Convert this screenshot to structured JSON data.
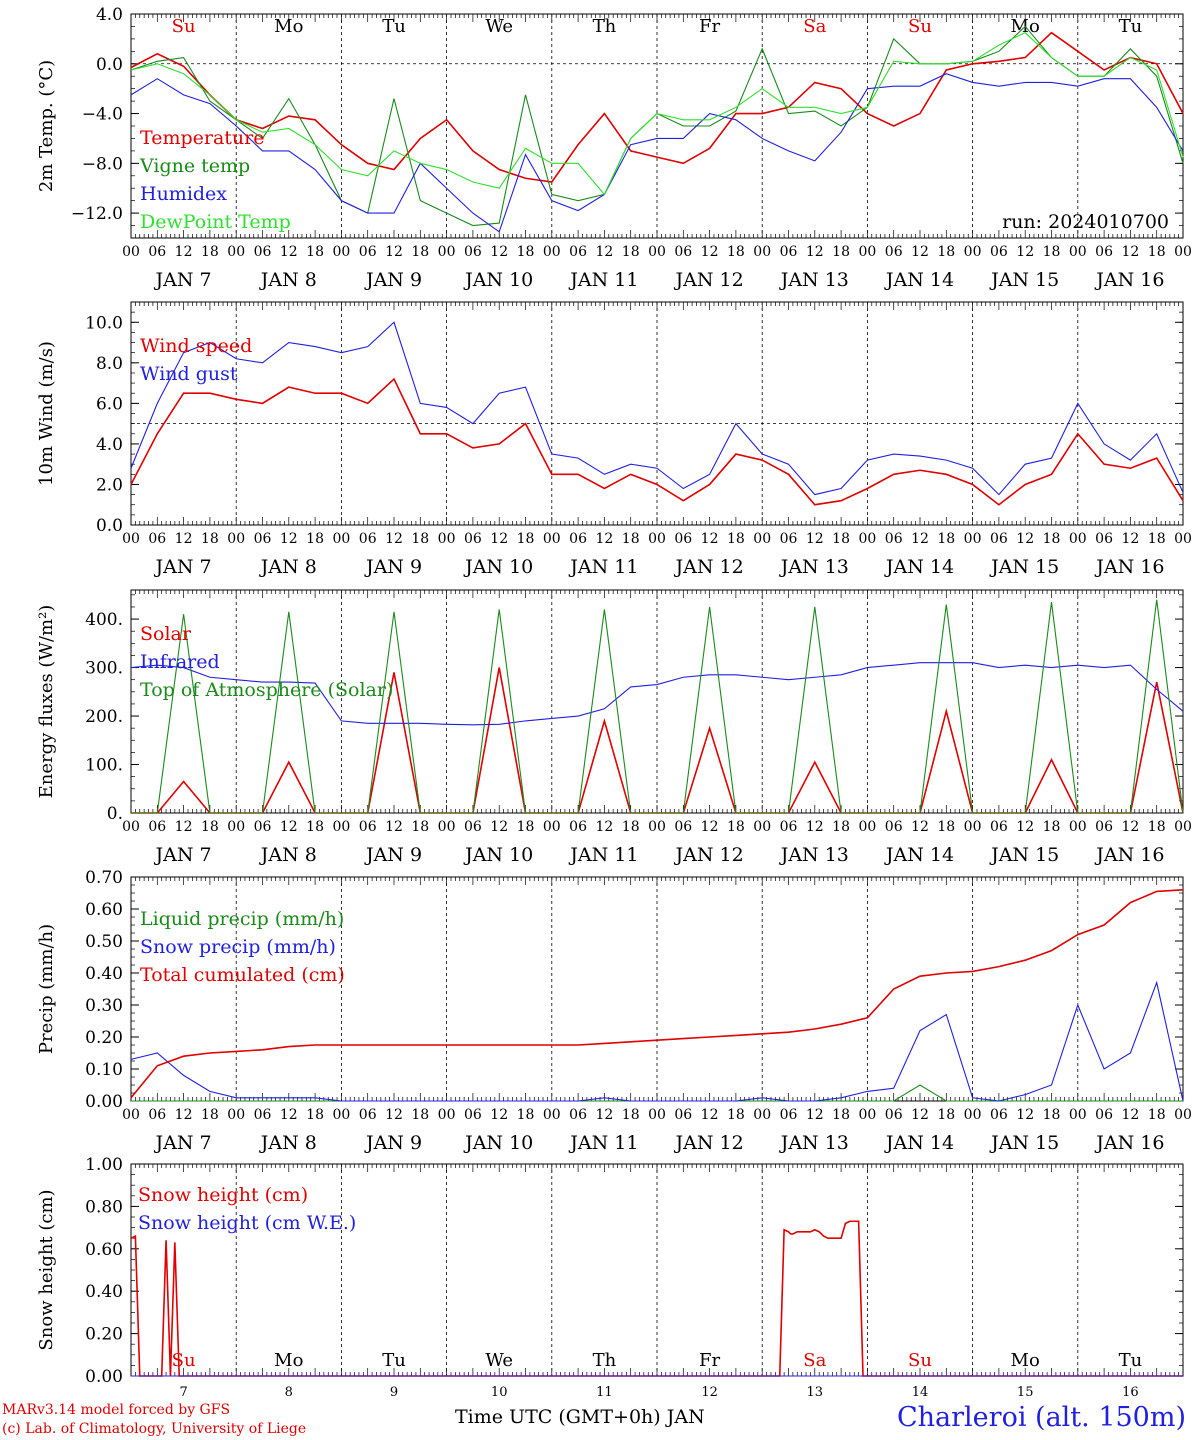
{
  "footer": {
    "credit_line1": "MARv3.14 model forced by GFS",
    "credit_line2": "(c) Lab. of Climatology, University of Liege",
    "xlabel": "Time UTC (GMT+0h) JAN",
    "station": "Charleroi (alt. 150m)"
  },
  "colors": {
    "red": "#e00000",
    "green": "#1a8a1a",
    "blue": "#2020e0",
    "lightgreen": "#30e030"
  },
  "chart_data": [
    {
      "type": "line",
      "ylabel": "2m Temp. (°C)",
      "ylim": [
        -14,
        4
      ],
      "yticks": [
        4,
        0,
        -4,
        -8,
        -12
      ],
      "ytick_labels": [
        "4.0",
        "0.0",
        "−4.0",
        "−8.0",
        "−12.0"
      ],
      "ref_line": 0,
      "day_labels": [
        "Su",
        "Mo",
        "Tu",
        "We",
        "Th",
        "Fr",
        "Sa",
        "Su",
        "Mo",
        "Tu"
      ],
      "day_label_colors": [
        "red",
        "black",
        "black",
        "black",
        "black",
        "black",
        "red",
        "red",
        "black",
        "black"
      ],
      "annotation": "run: 2024010700",
      "x_hours": [
        0,
        6,
        12,
        18,
        24,
        30,
        36,
        42,
        48,
        54,
        60,
        66,
        72,
        78,
        84,
        90,
        96,
        102,
        108,
        114,
        120,
        126,
        132,
        138,
        144,
        150,
        156,
        162,
        168,
        174,
        180,
        186,
        192,
        198,
        204,
        210,
        216,
        222,
        228,
        234,
        240
      ],
      "series": [
        {
          "name": "Temperature",
          "color": "red",
          "values": [
            -0.3,
            0.8,
            -0.2,
            -2.5,
            -4.5,
            -5.2,
            -4.2,
            -4.5,
            -6.5,
            -8,
            -8.5,
            -6,
            -4.5,
            -7,
            -8.5,
            -9.2,
            -9.5,
            -6.5,
            -4,
            -7,
            -7.5,
            -8,
            -6.8,
            -4,
            -4,
            -3.5,
            -1.5,
            -2,
            -4,
            -5,
            -4,
            -0.5,
            0,
            0.2,
            0.5,
            2.5,
            1,
            -0.5,
            0.5,
            0,
            -4
          ]
        },
        {
          "name": "Vigne temp",
          "color": "green",
          "values": [
            -0.5,
            0.2,
            0.5,
            -3,
            -4.5,
            -6,
            -2.8,
            -6.5,
            -11,
            -12,
            -2.8,
            -11,
            -12,
            -13,
            -12.8,
            -2.5,
            -10.5,
            -11,
            -10.5,
            -6,
            -4,
            -5,
            -5,
            -3.8,
            1.2,
            -4,
            -3.8,
            -5,
            -3.5,
            2,
            0,
            0,
            0.2,
            1,
            3,
            0.5,
            -1,
            -1,
            1.2,
            -1,
            -8
          ]
        },
        {
          "name": "Humidex",
          "color": "blue",
          "values": [
            -2.5,
            -1.2,
            -2.5,
            -3.2,
            -5,
            -7,
            -7,
            -8.5,
            -11,
            -12,
            -12,
            -8,
            -10,
            -12,
            -13.5,
            -7.3,
            -11,
            -11.8,
            -10.5,
            -6.5,
            -6,
            -6,
            -4,
            -4.5,
            -6,
            -7,
            -7.8,
            -5.5,
            -2,
            -1.8,
            -1.8,
            -0.8,
            -1.5,
            -1.8,
            -1.5,
            -1.5,
            -1.8,
            -1.2,
            -1.2,
            -3.5,
            -7
          ]
        },
        {
          "name": "DewPoint Temp",
          "color": "lightgreen",
          "values": [
            -0.5,
            0,
            -0.8,
            -2.5,
            -4.5,
            -5.5,
            -5.2,
            -6.5,
            -8.5,
            -9,
            -7,
            -8,
            -8.5,
            -9.5,
            -10,
            -6.8,
            -8,
            -8,
            -10.5,
            -6,
            -4,
            -4.5,
            -4.5,
            -3.5,
            -2,
            -3.5,
            -3.5,
            -4,
            -3.5,
            0.2,
            0,
            0,
            0.2,
            1.5,
            2.5,
            0.5,
            -1,
            -1,
            0.5,
            -0.5,
            -7.5
          ]
        }
      ]
    },
    {
      "type": "line",
      "ylabel": "10m Wind (m/s)",
      "ylim": [
        0,
        11
      ],
      "yticks": [
        0,
        2,
        4,
        6,
        8,
        10
      ],
      "ytick_labels": [
        "0.0",
        "2.0",
        "4.0",
        "6.0",
        "8.0",
        "10.0"
      ],
      "ref_line": 5,
      "x_hours": [
        0,
        6,
        12,
        18,
        24,
        30,
        36,
        42,
        48,
        54,
        60,
        66,
        72,
        78,
        84,
        90,
        96,
        102,
        108,
        114,
        120,
        126,
        132,
        138,
        144,
        150,
        156,
        162,
        168,
        174,
        180,
        186,
        192,
        198,
        204,
        210,
        216,
        222,
        228,
        234,
        240
      ],
      "series": [
        {
          "name": "Wind speed",
          "color": "red",
          "values": [
            2,
            4.5,
            6.5,
            6.5,
            6.2,
            6,
            6.8,
            6.5,
            6.5,
            6,
            7.2,
            4.5,
            4.5,
            3.8,
            4,
            5,
            2.5,
            2.5,
            1.8,
            2.5,
            2,
            1.2,
            2,
            3.5,
            3.2,
            2.5,
            1,
            1.2,
            1.8,
            2.5,
            2.7,
            2.5,
            2,
            1,
            2,
            2.5,
            4.5,
            3,
            2.8,
            3.3,
            1.2
          ]
        },
        {
          "name": "Wind gust",
          "color": "blue",
          "values": [
            2.8,
            6,
            8.5,
            9,
            8.2,
            8,
            9,
            8.8,
            8.5,
            8.8,
            10,
            6,
            5.8,
            5,
            6.5,
            6.8,
            3.5,
            3.3,
            2.5,
            3,
            2.8,
            1.8,
            2.5,
            5,
            3.5,
            3,
            1.5,
            1.8,
            3.2,
            3.5,
            3.4,
            3.2,
            2.8,
            1.5,
            3,
            3.3,
            6,
            4,
            3.2,
            4.5,
            1.6
          ]
        }
      ]
    },
    {
      "type": "line",
      "ylabel": "Energy fluxes (W/m²)",
      "ylim": [
        0,
        460
      ],
      "yticks": [
        0,
        100,
        200,
        300,
        400
      ],
      "ytick_labels": [
        "0.",
        "100.",
        "200.",
        "300.",
        "400."
      ],
      "x_hours": [
        0,
        6,
        12,
        18,
        24,
        30,
        36,
        42,
        48,
        54,
        60,
        66,
        72,
        78,
        84,
        90,
        96,
        102,
        108,
        114,
        120,
        126,
        132,
        138,
        144,
        150,
        156,
        162,
        168,
        174,
        180,
        186,
        192,
        198,
        204,
        210,
        216,
        222,
        228,
        234,
        240
      ],
      "series": [
        {
          "name": "Solar",
          "color": "red",
          "values": [
            0,
            0,
            65,
            0,
            0,
            0,
            105,
            0,
            0,
            0,
            290,
            0,
            0,
            0,
            300,
            0,
            0,
            0,
            190,
            0,
            0,
            0,
            175,
            0,
            0,
            0,
            105,
            0,
            0,
            0,
            0,
            210,
            0,
            0,
            0,
            110,
            0,
            0,
            0,
            270,
            0
          ]
        },
        {
          "name": "Infrared",
          "color": "blue",
          "values": [
            300,
            305,
            300,
            280,
            275,
            270,
            270,
            268,
            190,
            185,
            185,
            185,
            183,
            182,
            183,
            190,
            195,
            200,
            215,
            260,
            265,
            280,
            285,
            285,
            280,
            275,
            280,
            285,
            300,
            305,
            310,
            310,
            310,
            300,
            305,
            300,
            305,
            300,
            305,
            255,
            210
          ]
        },
        {
          "name": "Top of Atmosphere (Solar)",
          "color": "green",
          "values": [
            0,
            0,
            410,
            0,
            0,
            0,
            415,
            0,
            0,
            0,
            415,
            0,
            0,
            0,
            420,
            0,
            0,
            0,
            420,
            0,
            0,
            0,
            425,
            0,
            0,
            0,
            425,
            0,
            0,
            0,
            0,
            430,
            0,
            0,
            0,
            435,
            0,
            0,
            0,
            440,
            0
          ]
        }
      ]
    },
    {
      "type": "line",
      "ylabel": "Precip (mm/h)",
      "ylim": [
        0,
        0.7
      ],
      "yticks": [
        0,
        0.1,
        0.2,
        0.3,
        0.4,
        0.5,
        0.6,
        0.7
      ],
      "ytick_labels": [
        "0.00",
        "0.10",
        "0.20",
        "0.30",
        "0.40",
        "0.50",
        "0.60",
        "0.70"
      ],
      "x_hours": [
        0,
        6,
        12,
        18,
        24,
        30,
        36,
        42,
        48,
        54,
        60,
        66,
        72,
        78,
        84,
        90,
        96,
        102,
        108,
        114,
        120,
        126,
        132,
        138,
        144,
        150,
        156,
        162,
        168,
        174,
        180,
        186,
        192,
        198,
        204,
        210,
        216,
        222,
        228,
        234,
        240
      ],
      "series": [
        {
          "name": "Liquid precip (mm/h)",
          "color": "green",
          "values": [
            0,
            0,
            0,
            0,
            0,
            0,
            0,
            0,
            0,
            0,
            0,
            0,
            0,
            0,
            0,
            0,
            0,
            0,
            0,
            0,
            0,
            0,
            0,
            0,
            0,
            0,
            0,
            0,
            0,
            0,
            0.05,
            0,
            0,
            0,
            0,
            0,
            0,
            0,
            0,
            0,
            0
          ]
        },
        {
          "name": "Snow precip (mm/h)",
          "color": "blue",
          "values": [
            0.13,
            0.15,
            0.08,
            0.03,
            0.01,
            0.01,
            0.01,
            0.01,
            0,
            0,
            0,
            0,
            0,
            0,
            0,
            0,
            0,
            0,
            0.01,
            0,
            0,
            0,
            0,
            0,
            0.01,
            0,
            0,
            0.01,
            0.03,
            0.04,
            0.22,
            0.27,
            0.01,
            0,
            0.02,
            0.05,
            0.3,
            0.1,
            0.15,
            0.37,
            0
          ]
        },
        {
          "name": "Total cumulated (cm)",
          "color": "red",
          "values": [
            0.01,
            0.11,
            0.14,
            0.15,
            0.155,
            0.16,
            0.17,
            0.175,
            0.175,
            0.175,
            0.175,
            0.175,
            0.175,
            0.175,
            0.175,
            0.175,
            0.175,
            0.175,
            0.18,
            0.185,
            0.19,
            0.195,
            0.2,
            0.205,
            0.21,
            0.215,
            0.225,
            0.24,
            0.26,
            0.35,
            0.39,
            0.4,
            0.405,
            0.42,
            0.44,
            0.47,
            0.52,
            0.55,
            0.62,
            0.655,
            0.66
          ]
        }
      ]
    },
    {
      "type": "line",
      "ylabel": "Snow height (cm)",
      "ylim": [
        0,
        1
      ],
      "yticks": [
        0,
        0.2,
        0.4,
        0.6,
        0.8,
        1.0
      ],
      "ytick_labels": [
        "0.00",
        "0.20",
        "0.40",
        "0.60",
        "0.80",
        "1.00"
      ],
      "bottom_day_labels": [
        "Su",
        "Mo",
        "Tu",
        "We",
        "Th",
        "Fr",
        "Sa",
        "Su",
        "Mo",
        "Tu"
      ],
      "bottom_date_labels": [
        "7",
        "8",
        "9",
        "10",
        "11",
        "12",
        "13",
        "14",
        "15",
        "16"
      ],
      "series": [
        {
          "name": "Snow height (cm)",
          "color": "red",
          "x": [
            0,
            1,
            2,
            7,
            8,
            9,
            10,
            11,
            148,
            149,
            150,
            150.5,
            151,
            152,
            153,
            154,
            155,
            156,
            157,
            158,
            159,
            160,
            161,
            162,
            163,
            164,
            165,
            166,
            167,
            172,
            176,
            182,
            190,
            192,
            196,
            200,
            204,
            208,
            212,
            216,
            218,
            220,
            222,
            224,
            226,
            228,
            230,
            232,
            234,
            236,
            238,
            240
          ],
          "y": [
            0.65,
            0.66,
            0,
            0,
            0.64,
            0,
            0.63,
            0,
            0,
            0.69,
            0.68,
            0.67,
            0.67,
            0.68,
            0.68,
            0.68,
            0.68,
            0.69,
            0.68,
            0.66,
            0.65,
            0.65,
            0.65,
            0.65,
            0.72,
            0.73,
            0.73,
            0.73,
            0,
            0,
            0,
            0,
            0,
            0,
            0,
            0,
            0,
            0,
            0,
            0,
            0,
            0,
            0,
            0,
            0,
            0,
            0,
            0,
            0,
            0,
            0,
            0
          ]
        },
        {
          "name": "Snow height (cm W.E.)",
          "color": "blue",
          "x": [
            0,
            240
          ],
          "y": [
            0,
            0
          ]
        }
      ]
    }
  ],
  "x_axis": {
    "hour_labels": [
      "00",
      "06",
      "12",
      "18"
    ],
    "date_labels": [
      "JAN  7",
      "JAN  8",
      "JAN  9",
      "JAN 10",
      "JAN 11",
      "JAN 12",
      "JAN 13",
      "JAN 14",
      "JAN 15",
      "JAN 16"
    ]
  }
}
